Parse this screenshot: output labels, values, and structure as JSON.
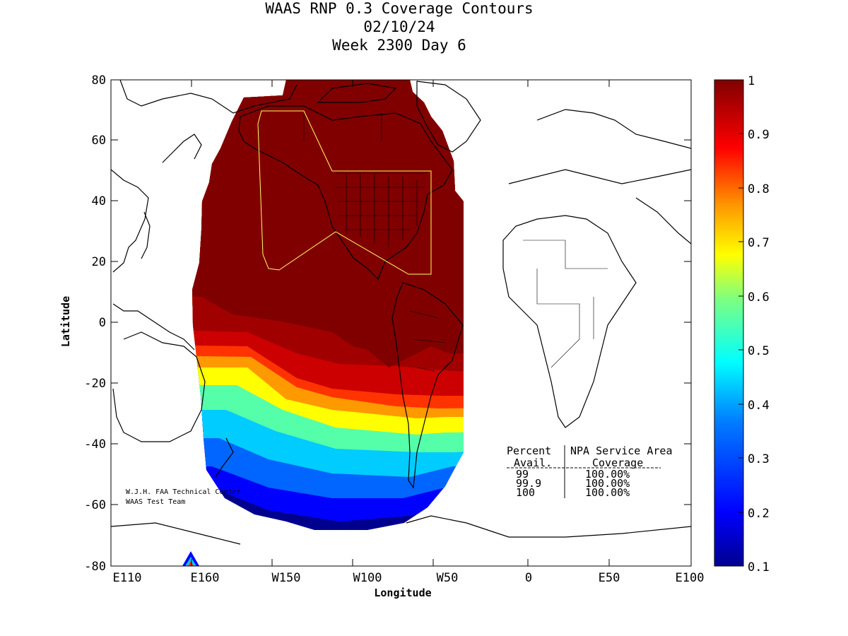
{
  "title": {
    "line1": "WAAS RNP 0.3 Coverage Contours",
    "line2": "02/10/24",
    "line3": "Week 2300 Day 6"
  },
  "axes": {
    "xlabel": "Longitude",
    "ylabel": "Latitude",
    "x_ticks": [
      "E110",
      "E160",
      "W150",
      "W100",
      "W50",
      "0",
      "E50",
      "E100"
    ],
    "y_ticks": [
      "80",
      "60",
      "40",
      "20",
      "0",
      "-20",
      "-40",
      "-60",
      "-80"
    ]
  },
  "colorbar": {
    "ticks": [
      "1",
      "0.9",
      "0.8",
      "0.7",
      "0.6",
      "0.5",
      "0.4",
      "0.3",
      "0.2",
      "0.1"
    ],
    "range": [
      0.1,
      1.0
    ],
    "colors": [
      "#00008f",
      "#0000ff",
      "#007fff",
      "#00ffff",
      "#7fff7f",
      "#ffff00",
      "#ff7f00",
      "#ff0000",
      "#7f0000"
    ]
  },
  "credits": {
    "line1": "W.J.H. FAA Technical Center",
    "line2": "WAAS Test Team"
  },
  "stats_table": {
    "header1_col1": "Percent",
    "header1_col2": "NPA Service Area",
    "header2_col1": "Avail.",
    "header2_col2": "Coverage",
    "rows": [
      {
        "avail": "99",
        "coverage": "100.00%"
      },
      {
        "avail": "99.9",
        "coverage": "100.00%"
      },
      {
        "avail": "100",
        "coverage": "100.00%"
      }
    ]
  },
  "colors": {
    "land_outline": "#000000",
    "service_area_outline": "#ffff66",
    "frame": "#000000"
  }
}
